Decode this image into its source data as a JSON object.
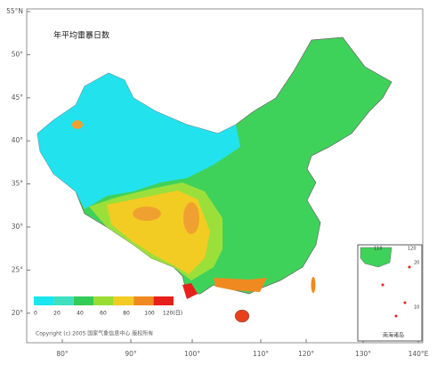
{
  "title": "年平均雷暴日数",
  "lat_labels": [
    "55°N",
    "50°",
    "45°",
    "40°",
    "35°",
    "30°",
    "25°",
    "20°"
  ],
  "lon_labels": [
    "80°",
    "90°",
    "100°",
    "110°",
    "120°",
    "130°",
    "140°E"
  ],
  "colorbar": {
    "labels": [
      "0",
      "20",
      "40",
      "60",
      "80",
      "100",
      "120(日)"
    ],
    "colors": [
      "#19e6f0",
      "#3fe0c0",
      "#33cc55",
      "#99dd33",
      "#f2cc22",
      "#f08a20",
      "#e8201a"
    ]
  },
  "copyright": "Copyright (c) 2005 国家气象信息中心 版权所有",
  "inset": {
    "title": "南海诸岛",
    "xticks": [
      "110",
      "120"
    ],
    "yticks": [
      "20",
      "10"
    ]
  }
}
